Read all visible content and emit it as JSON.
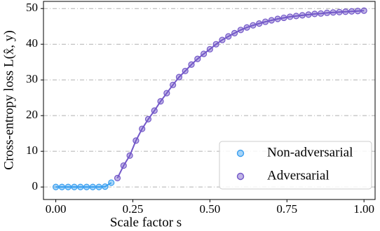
{
  "chart_data": {
    "type": "line",
    "x_label": "Scale factor s",
    "y_label": "Cross-entropy loss L(x̂, y)",
    "xlim": [
      -0.04,
      1.036
    ],
    "ylim": [
      -3.5,
      52
    ],
    "xticks": [
      {
        "value": 0,
        "label": "0.00"
      },
      {
        "value": 0.25,
        "label": "0.25"
      },
      {
        "value": 0.5,
        "label": "0.50"
      },
      {
        "value": 0.75,
        "label": "0.75"
      },
      {
        "value": 1,
        "label": "1.00"
      }
    ],
    "yticks": [
      0,
      10,
      20,
      30,
      40,
      50
    ],
    "grid": true,
    "legend": "lower right",
    "series": [
      {
        "name": "Non-adversarial",
        "color": "#3a9ff0",
        "x": [
          0,
          0.02,
          0.04,
          0.06,
          0.08,
          0.1,
          0.12,
          0.14,
          0.16,
          0.18
        ],
        "values": [
          0,
          0,
          0,
          0,
          0,
          0,
          0,
          0,
          0.1,
          1.2
        ]
      },
      {
        "name": "Adversarial",
        "color": "#7358c8",
        "x": [
          0.2,
          0.22,
          0.24,
          0.26,
          0.28,
          0.3,
          0.32,
          0.34,
          0.36,
          0.38,
          0.4,
          0.42,
          0.44,
          0.46,
          0.48,
          0.5,
          0.52,
          0.54,
          0.56,
          0.58,
          0.6,
          0.62,
          0.64,
          0.66,
          0.68,
          0.7,
          0.72,
          0.74,
          0.76,
          0.78,
          0.8,
          0.82,
          0.84,
          0.86,
          0.88,
          0.9,
          0.92,
          0.94,
          0.96,
          0.98,
          1
        ],
        "values": [
          2.5,
          6,
          8.8,
          13,
          16.3,
          19,
          21.4,
          24,
          26.3,
          28.6,
          30.8,
          32.5,
          34.3,
          35.9,
          37.3,
          38.6,
          40,
          41.2,
          42.2,
          43.1,
          44,
          44.7,
          45.3,
          45.8,
          46.3,
          46.7,
          47.1,
          47.4,
          47.7,
          47.9,
          48.1,
          48.3,
          48.5,
          48.6,
          48.8,
          48.9,
          49,
          49.1,
          49.2,
          49.3,
          49.4
        ]
      }
    ]
  }
}
